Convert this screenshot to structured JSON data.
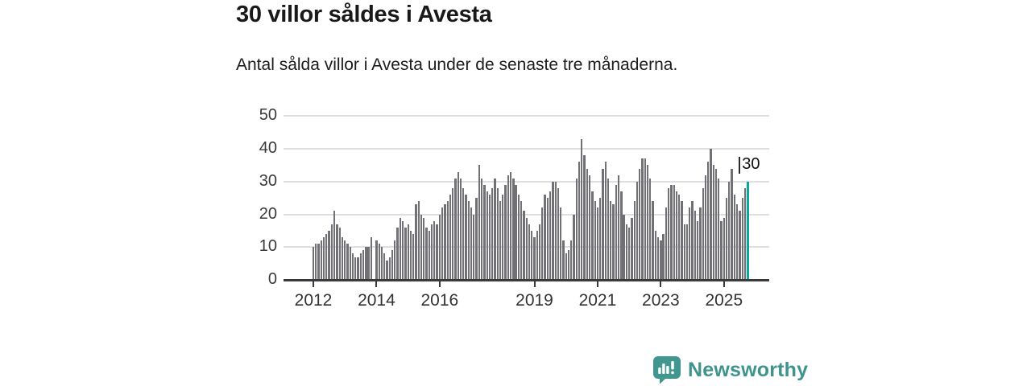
{
  "header": {
    "title": "30 villor såldes i Avesta",
    "subtitle": "Antal sålda villor i Avesta under de senaste tre månaderna."
  },
  "chart_data": {
    "type": "bar",
    "title": "30 villor såldes i Avesta",
    "subtitle": "Antal sålda villor i Avesta under de senaste tre månaderna.",
    "frequency": "monthly",
    "x_start": "2012-01",
    "x_end": "2025-10",
    "ylim": [
      0,
      50
    ],
    "y_ticks": [
      0,
      10,
      20,
      30,
      40,
      50
    ],
    "grid": true,
    "legend": "none",
    "x_ticks": [
      {
        "label": "2012",
        "month_index": 0
      },
      {
        "label": "2014",
        "month_index": 24
      },
      {
        "label": "2016",
        "month_index": 48
      },
      {
        "label": "2019",
        "month_index": 84
      },
      {
        "label": "2021",
        "month_index": 108
      },
      {
        "label": "2023",
        "month_index": 132
      },
      {
        "label": "2025",
        "month_index": 156
      }
    ],
    "values": [
      10,
      11,
      11,
      12,
      13,
      14,
      15,
      17,
      21,
      17,
      16,
      13,
      12,
      11,
      10,
      8,
      7,
      7,
      8,
      9,
      10,
      10,
      13,
      0,
      12,
      11,
      10,
      8,
      6,
      7,
      9,
      12,
      16,
      19,
      18,
      16,
      17,
      15,
      14,
      23,
      24,
      20,
      19,
      16,
      15,
      17,
      18,
      17,
      20,
      22,
      23,
      24,
      26,
      28,
      31,
      33,
      31,
      28,
      26,
      24,
      22,
      20,
      25,
      35,
      31,
      29,
      27,
      26,
      28,
      31,
      28,
      24,
      26,
      29,
      32,
      33,
      31,
      29,
      26,
      24,
      21,
      19,
      17,
      15,
      13,
      15,
      17,
      22,
      26,
      25,
      27,
      30,
      30,
      28,
      22,
      12,
      8,
      9,
      12,
      20,
      31,
      36,
      43,
      38,
      34,
      32,
      27,
      24,
      22,
      25,
      34,
      36,
      31,
      24,
      23,
      29,
      32,
      27,
      20,
      17,
      16,
      19,
      24,
      30,
      34,
      37,
      37,
      35,
      31,
      24,
      15,
      13,
      12,
      14,
      22,
      28,
      29,
      29,
      27,
      26,
      24,
      17,
      17,
      22,
      24,
      21,
      18,
      22,
      28,
      32,
      36,
      40,
      35,
      34,
      31,
      18,
      19,
      25,
      30,
      34,
      26,
      23,
      21,
      25,
      28,
      30
    ],
    "highlight_last": true,
    "last_value": 30,
    "last_value_label": "30",
    "bar_color": "#717175",
    "highlight_color": "#0aa79c",
    "axis_color": "#3a3a3a",
    "grid_color": "#dedede"
  },
  "footer": {
    "brand": "Newsworthy",
    "logo_icon": "newsworthy-speech-bubble-chart-icon",
    "brand_color": "#3e948d"
  }
}
